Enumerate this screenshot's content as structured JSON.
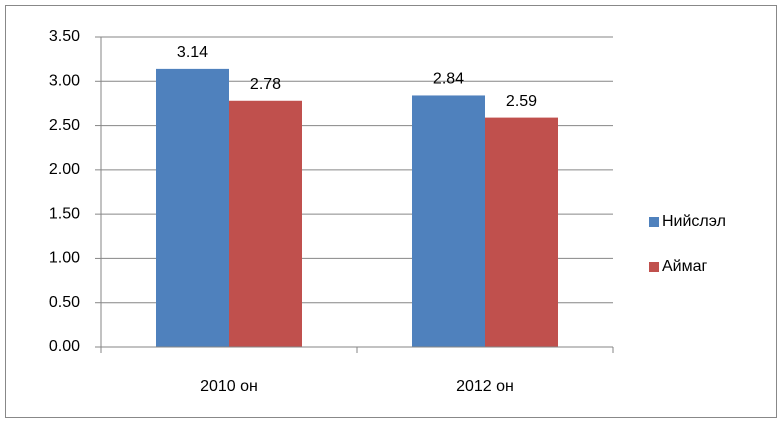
{
  "chart_data": {
    "type": "bar",
    "categories": [
      "2010 он",
      "2012 он"
    ],
    "series": [
      {
        "name": "Нийслэл",
        "color": "#4f81bd",
        "values": [
          3.14,
          2.84
        ]
      },
      {
        "name": "Аймаг",
        "color": "#c0504d",
        "values": [
          2.78,
          2.59
        ]
      }
    ],
    "ylim": [
      0,
      3.5
    ],
    "yticks": [
      {
        "value": 0,
        "label": "0.00"
      },
      {
        "value": 0.5,
        "label": "0.50"
      },
      {
        "value": 1,
        "label": "1.00"
      },
      {
        "value": 1.5,
        "label": "1.50"
      },
      {
        "value": 2,
        "label": "2.00"
      },
      {
        "value": 2.5,
        "label": "2.50"
      },
      {
        "value": 3,
        "label": "3.00"
      },
      {
        "value": 3.5,
        "label": "3.50"
      }
    ],
    "grid": true,
    "legend": "right"
  }
}
